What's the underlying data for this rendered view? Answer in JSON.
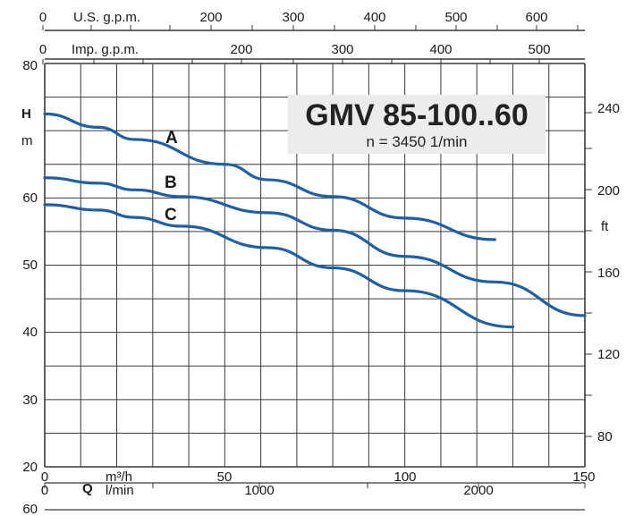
{
  "chart_data": {
    "type": "line",
    "title": "GMV 85-100..60",
    "subtitle": "n = 3450 1/min",
    "colors": {
      "curve": "#1f5fa6",
      "grid": "#3a3a3a",
      "box": "#ececec"
    },
    "x_axis": {
      "unit_label": "m³/h",
      "symbol": "Q",
      "range": [
        0,
        150
      ],
      "ticks": [
        "0",
        "50",
        "100",
        "150"
      ]
    },
    "x_axis_lmin": {
      "unit_label": "l/min",
      "ticks": [
        "0",
        "1000",
        "2000"
      ]
    },
    "x_axis_usgpm": {
      "unit_label": "U.S. g.p.m.",
      "ticks": [
        "0",
        "200",
        "300",
        "400",
        "500",
        "600"
      ]
    },
    "x_axis_impgpm": {
      "unit_label": "Imp. g.p.m.",
      "ticks": [
        "0",
        "200",
        "300",
        "400",
        "500"
      ]
    },
    "y_axis": {
      "symbol": "H",
      "unit_label": "m",
      "range": [
        20,
        80
      ],
      "ticks": [
        "20",
        "30",
        "40",
        "50",
        "60",
        "80"
      ]
    },
    "y_axis_right": {
      "unit_label": "ft",
      "ticks": [
        "80",
        "120",
        "160",
        "200",
        "240"
      ]
    },
    "bottom_extra_label": "60",
    "series": [
      {
        "name": "A",
        "x": [
          0,
          15,
          25,
          50,
          62,
          80,
          100,
          125
        ],
        "y": [
          72.5,
          70.5,
          68.7,
          65,
          62.7,
          60.2,
          57,
          53.8
        ]
      },
      {
        "name": "B",
        "x": [
          0,
          15,
          25,
          38,
          62,
          80,
          100,
          125,
          150
        ],
        "y": [
          63,
          62.2,
          61.2,
          60.2,
          57.8,
          55.2,
          51.3,
          47.5,
          42.5
        ]
      },
      {
        "name": "C",
        "x": [
          0,
          15,
          25,
          38,
          62,
          80,
          100,
          130
        ],
        "y": [
          59,
          58.2,
          57.1,
          55.8,
          52.6,
          49.6,
          46.2,
          40.8
        ]
      }
    ]
  }
}
